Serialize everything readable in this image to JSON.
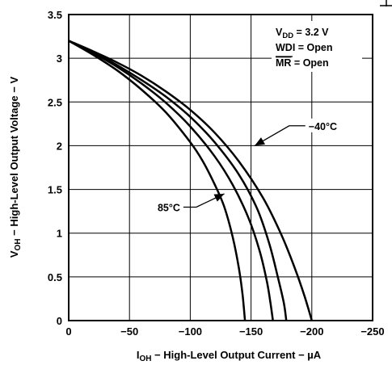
{
  "chart_data": {
    "type": "line",
    "title": "",
    "xlabel": {
      "prefix": "I",
      "sub": "OH",
      "rest": " − High-Level Output Current − µA"
    },
    "ylabel": {
      "prefix": "V",
      "sub": "OH",
      "rest": " − High-Level Output Voltage − V"
    },
    "xlim": [
      0,
      -250
    ],
    "ylim": [
      0,
      3.5
    ],
    "x_ticks": [
      0,
      -50,
      -100,
      -150,
      -200,
      -250
    ],
    "x_tick_labels": [
      "0",
      "−50",
      "−100",
      "−150",
      "−200",
      "−250"
    ],
    "y_ticks": [
      0,
      0.5,
      1,
      1.5,
      2,
      2.5,
      3,
      3.5
    ],
    "y_tick_labels": [
      "0",
      "0.5",
      "1",
      "1.5",
      "2",
      "2.5",
      "3",
      "3.5"
    ],
    "grid": true,
    "conditions": {
      "vdd": {
        "prefix": "V",
        "sub": "DD",
        "rest": " = 3.2 V"
      },
      "wdi": "WDI = Open",
      "mr": {
        "overline": "MR",
        "rest": " = Open"
      }
    },
    "annotations": [
      {
        "label": "−40°C",
        "target": [
          -153,
          2.0
        ],
        "text_at": [
          -192,
          2.2
        ]
      },
      {
        "label": "85°C",
        "target": [
          -128,
          1.45
        ],
        "text_at": [
          -97,
          1.27
        ]
      }
    ],
    "series": [
      {
        "color": "#000000",
        "points": [
          [
            0,
            3.2
          ],
          [
            -20,
            3.04
          ],
          [
            -40,
            2.86
          ],
          [
            -60,
            2.64
          ],
          [
            -80,
            2.38
          ],
          [
            -100,
            2.04
          ],
          [
            -110,
            1.83
          ],
          [
            -120,
            1.56
          ],
          [
            -128,
            1.3
          ],
          [
            -135,
            0.95
          ],
          [
            -140,
            0.6
          ],
          [
            -143,
            0.3
          ],
          [
            -145,
            0.0
          ]
        ]
      },
      {
        "color": "#000000",
        "points": [
          [
            0,
            3.2
          ],
          [
            -20,
            3.06
          ],
          [
            -40,
            2.9
          ],
          [
            -60,
            2.71
          ],
          [
            -80,
            2.49
          ],
          [
            -100,
            2.22
          ],
          [
            -120,
            1.88
          ],
          [
            -135,
            1.55
          ],
          [
            -148,
            1.17
          ],
          [
            -157,
            0.8
          ],
          [
            -163,
            0.45
          ],
          [
            -166,
            0.2
          ],
          [
            -168,
            0.0
          ]
        ]
      },
      {
        "color": "#000000",
        "points": [
          [
            0,
            3.2
          ],
          [
            -20,
            3.07
          ],
          [
            -40,
            2.92
          ],
          [
            -60,
            2.75
          ],
          [
            -80,
            2.56
          ],
          [
            -100,
            2.33
          ],
          [
            -120,
            2.04
          ],
          [
            -140,
            1.67
          ],
          [
            -155,
            1.28
          ],
          [
            -165,
            0.88
          ],
          [
            -172,
            0.5
          ],
          [
            -177,
            0.2
          ],
          [
            -179,
            0.0
          ]
        ]
      },
      {
        "color": "#000000",
        "points": [
          [
            0,
            3.2
          ],
          [
            -20,
            3.08
          ],
          [
            -40,
            2.95
          ],
          [
            -60,
            2.8
          ],
          [
            -80,
            2.62
          ],
          [
            -100,
            2.41
          ],
          [
            -120,
            2.15
          ],
          [
            -140,
            1.82
          ],
          [
            -160,
            1.4
          ],
          [
            -175,
            0.98
          ],
          [
            -186,
            0.6
          ],
          [
            -194,
            0.28
          ],
          [
            -200,
            0.0
          ]
        ]
      }
    ]
  }
}
